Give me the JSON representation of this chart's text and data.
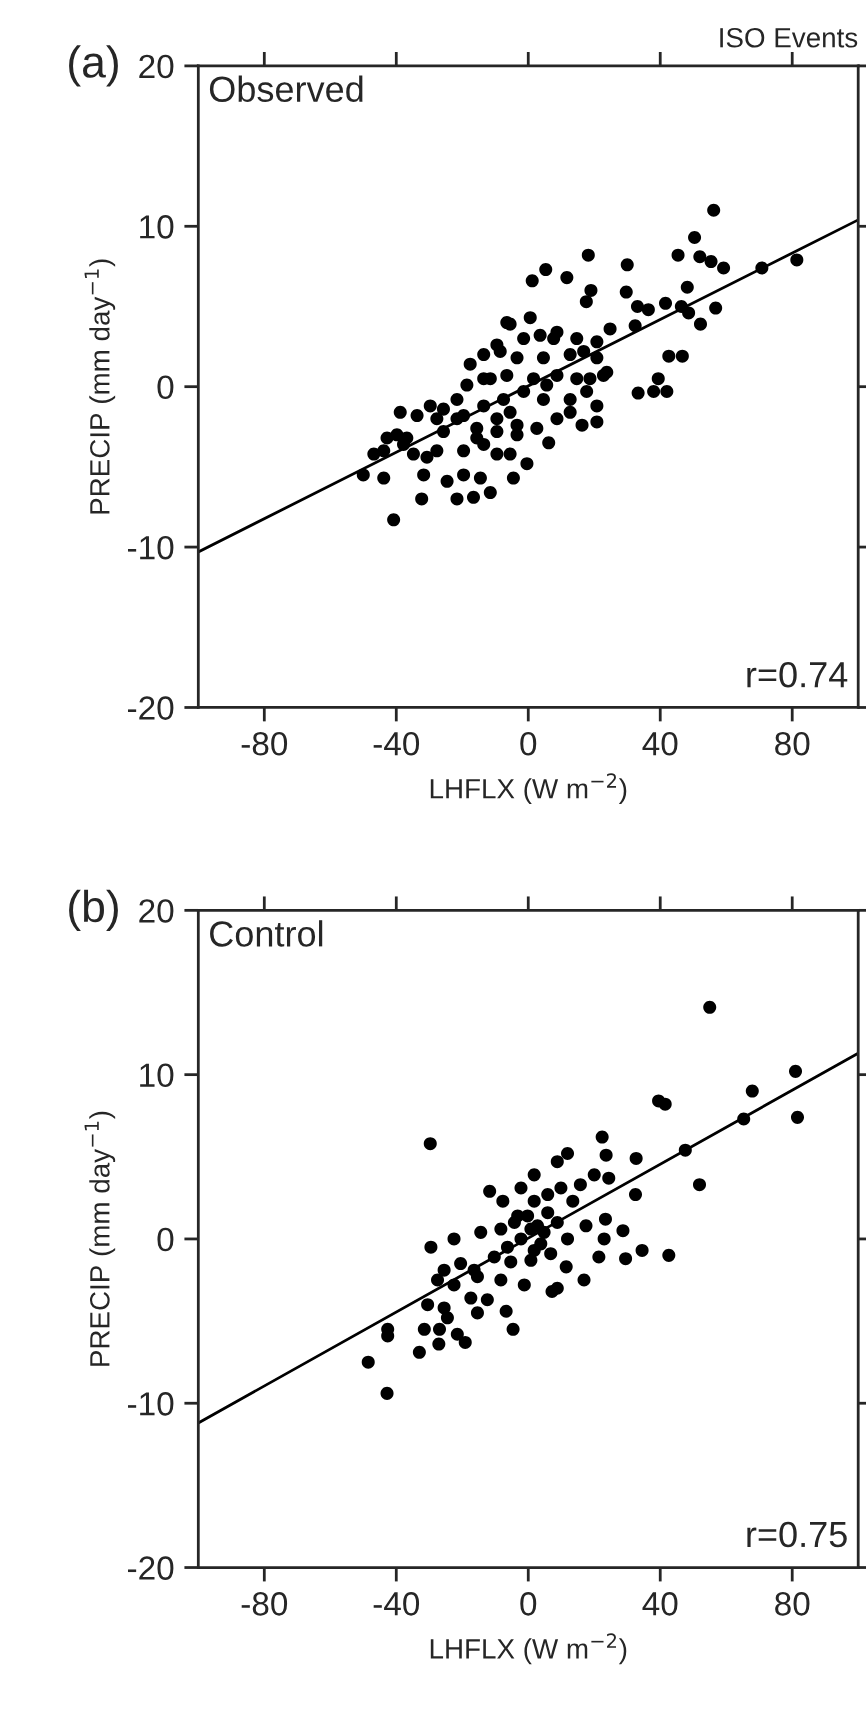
{
  "chart_data": [
    {
      "type": "scatter",
      "title": "(a)",
      "xlabel": "LHFLX (W m$^{−2}$)",
      "ylabel": "PRECIP (mm day$^{−1}$)",
      "annotations": [
        "ISO Events",
        "Observed",
        "r=0.74"
      ],
      "xlim": [
        -100,
        100
      ],
      "ylim": [
        -20,
        20
      ],
      "xticks": [
        -80,
        -40,
        0,
        40,
        80
      ],
      "yticks": [
        -20,
        -10,
        0,
        10,
        20
      ],
      "grid": false,
      "marker": "circle",
      "series": [
        {
          "color": "#000000",
          "x": [
            56.2,
            81.4,
            70.8,
            50.4,
            45.4,
            52,
            55.4,
            59.2,
            18.2,
            30,
            5.3,
            1.2,
            11.7,
            19,
            17.6,
            29.7,
            33.1,
            36.4,
            41.6,
            48.2,
            46.4,
            48.6,
            56.8,
            52.2,
            32.4,
            42.6,
            46.7,
            39.4,
            42,
            33.3,
            38,
            -6.5,
            0.6,
            -1.4,
            7.7,
            14.7,
            24.8,
            20.8,
            -13.5,
            -8.5,
            -3.4,
            4.6,
            12.7,
            20.8,
            22.8,
            14.7,
            8.7,
            1.6,
            -6.5,
            -13.5,
            -18.6,
            -21.6,
            -25.7,
            -29.7,
            -38.8,
            -33.7,
            -25.7,
            -19.6,
            -13.5,
            -7.5,
            -1.4,
            4.6,
            12.7,
            20.8,
            20.8,
            16.3,
            8.7,
            2.6,
            -3.4,
            -9.5,
            -15.6,
            6.2,
            -42.8,
            -39.8,
            -43.8,
            -37.8,
            -34.8,
            -30.7,
            -27.7,
            -19.6,
            -13.5,
            -9.5,
            -5.5,
            -0.4,
            -19.6,
            -31.7,
            -24.6,
            -14.5,
            -4.5,
            -50,
            -43.8,
            -32.3,
            -21.6,
            -16.6,
            -11.5,
            -40.8,
            -46.8,
            -15.6,
            -9.5,
            -3.4,
            23.8,
            8.7,
            16.8,
            -11.5,
            12.7,
            -5.5,
            -21.6,
            -27.7,
            -36.8,
            -5.5,
            -9.5,
            3.6,
            -17.6,
            5.6,
            17.7,
            18.7
          ],
          "values": [
            11,
            7.9,
            7.4,
            9.3,
            8.2,
            8.1,
            7.8,
            7.4,
            8.2,
            7.6,
            7.3,
            6.6,
            6.8,
            6,
            5.3,
            5.9,
            5,
            4.8,
            5.2,
            6.2,
            5,
            4.6,
            4.9,
            3.9,
            3.8,
            1.9,
            1.9,
            0.5,
            -0.3,
            -0.4,
            -0.3,
            4,
            4.3,
            3,
            3,
            3,
            3.6,
            2.8,
            2,
            2.2,
            1.8,
            1.8,
            2,
            1.8,
            0.7,
            0.5,
            0.7,
            0.5,
            0.7,
            0.5,
            0.1,
            -0.8,
            -1.4,
            -1.2,
            -1.6,
            -1.8,
            -2.8,
            -1.8,
            -1.2,
            -0.8,
            -0.3,
            -0.8,
            -0.8,
            -1.2,
            -2.2,
            -2.4,
            -2,
            -2.6,
            -2.4,
            -2,
            -2.6,
            -3.5,
            -3.2,
            -3,
            -4,
            -3.6,
            -4.2,
            -4.4,
            -4,
            -4,
            -3.6,
            -4.2,
            -4.2,
            -4.8,
            -5.5,
            -5.5,
            -5.9,
            -5.7,
            -5.7,
            -5.5,
            -5.7,
            -7,
            -7,
            -6.9,
            -6.6,
            -8.3,
            -4.2,
            -3.2,
            -2.8,
            -3,
            0.9,
            3.4,
            2.2,
            0.5,
            -1.6,
            -1.6,
            -2,
            -2,
            -3.2,
            3.9,
            2.6,
            3.2,
            1.4,
            0.1,
            -0.3,
            0.5
          ]
        },
        {
          "type": "line",
          "color": "#000000",
          "marker": "none",
          "x": [
            -100,
            100
          ],
          "values": [
            -10.3,
            10.4
          ]
        }
      ]
    },
    {
      "type": "scatter",
      "title": "(b)",
      "xlabel": "LHFLX (W m$^{−2}$)",
      "ylabel": "PRECIP (mm day$^{−1}$)",
      "annotations": [
        "Control",
        "r=0.75"
      ],
      "xlim": [
        -100,
        100
      ],
      "ylim": [
        -20,
        20
      ],
      "xticks": [
        -80,
        -40,
        0,
        40,
        80
      ],
      "yticks": [
        -20,
        -10,
        0,
        10,
        20
      ],
      "grid": false,
      "marker": "circle",
      "series": [
        {
          "color": "#000000",
          "x": [
            55,
            81,
            67.9,
            65.3,
            81.6,
            39.5,
            41.5,
            47.6,
            51.9,
            22.4,
            23.6,
            32.7,
            32.5,
            42.6,
            34.5,
            29.5,
            28.7,
            23.4,
            23,
            21.4,
            16.9,
            17.5,
            11.9,
            8.8,
            20,
            24.4,
            15.8,
            13.5,
            1.8,
            -2.2,
            -7.7,
            -11.7,
            -29.7,
            -29.5,
            -22.5,
            -14.4,
            -8.3,
            -4.2,
            -0.2,
            2.8,
            5.9,
            8.8,
            11.9,
            -2.2,
            -6.3,
            3.8,
            6.8,
            0.8,
            -5.3,
            -10.3,
            -16.4,
            -20.5,
            -25.5,
            -27.5,
            -22.5,
            -15.4,
            -8.3,
            -1.2,
            11.5,
            8.8,
            7.2,
            -17.4,
            -12.4,
            -6.7,
            -15.4,
            -25.5,
            -30.5,
            -24.5,
            -31.5,
            -26.9,
            -21.5,
            -19.1,
            -27.1,
            -33,
            -42.6,
            -42.6,
            -4.6,
            -48.5,
            -42.8,
            1.8,
            5.9,
            9.9,
            -3.2,
            0.8,
            4.8,
            1.8
          ],
          "values": [
            14.1,
            10.2,
            9,
            7.3,
            7.4,
            8.4,
            8.2,
            5.4,
            3.3,
            6.2,
            5.1,
            4.9,
            2.7,
            -1,
            -0.7,
            -1.2,
            0.5,
            1.2,
            0,
            -1.1,
            -2.5,
            0.8,
            5.2,
            4.7,
            3.9,
            3.7,
            3.3,
            2.3,
            3.9,
            3.1,
            2.3,
            2.9,
            5.8,
            -0.5,
            0,
            0.4,
            0.6,
            1,
            1.4,
            0.8,
            1.6,
            1,
            0,
            0,
            -0.5,
            -0.3,
            -0.9,
            -1.3,
            -1.4,
            -1.1,
            -1.9,
            -1.5,
            -1.9,
            -2.5,
            -2.8,
            -2.3,
            -2.5,
            -2.8,
            -1.7,
            -3,
            -3.2,
            -3.6,
            -3.7,
            -4.4,
            -4.5,
            -4.2,
            -4,
            -4.8,
            -5.5,
            -5.5,
            -5.8,
            -6.3,
            -6.4,
            -6.9,
            -5.5,
            -5.9,
            -5.5,
            -7.5,
            -9.4,
            2.3,
            2.7,
            3.1,
            1.4,
            0.6,
            0.4,
            -0.7
          ]
        },
        {
          "type": "line",
          "color": "#000000",
          "marker": "none",
          "x": [
            -100,
            100
          ],
          "values": [
            -11.2,
            11.3
          ]
        }
      ]
    }
  ]
}
